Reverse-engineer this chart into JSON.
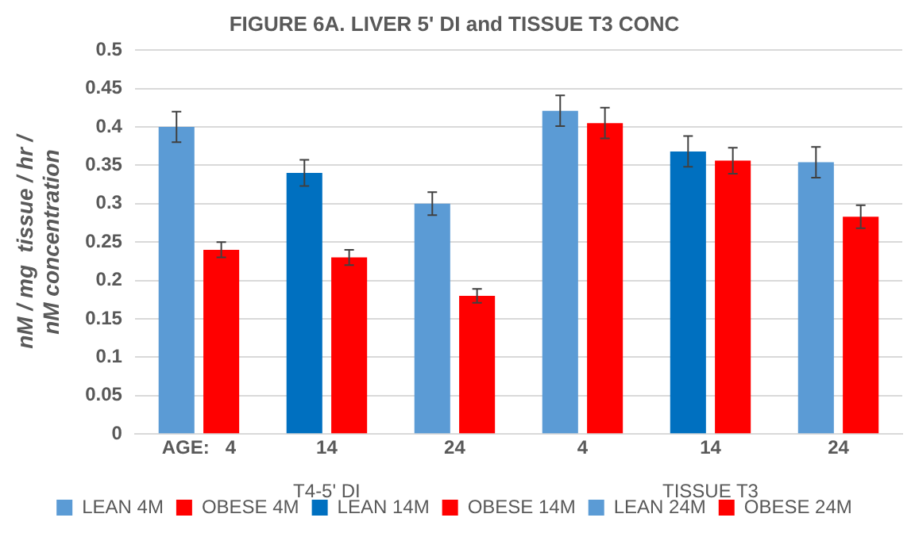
{
  "chart_data": {
    "type": "bar",
    "title": "FIGURE 6A. LIVER 5' DI and TISSUE T3 CONC",
    "ylabel": "nM / mg  tissue / hr / nM concentration",
    "categories": [
      "AGE:   4",
      "14",
      "24",
      "4",
      "14",
      "24"
    ],
    "series": [
      {
        "name": "LEAN 4M",
        "color": "#5b9bd5",
        "values": [
          0.4,
          null,
          null,
          0.421,
          null,
          null
        ],
        "errors": [
          0.02,
          null,
          null,
          0.02,
          null,
          null
        ]
      },
      {
        "name": "OBESE 4M",
        "color": "#ff0000",
        "values": [
          0.24,
          null,
          null,
          0.405,
          null,
          null
        ],
        "errors": [
          0.01,
          null,
          null,
          0.02,
          null,
          null
        ]
      },
      {
        "name": "LEAN 14M",
        "color": "#0070c0",
        "values": [
          null,
          0.34,
          null,
          null,
          0.368,
          null
        ],
        "errors": [
          null,
          0.017,
          null,
          null,
          0.02,
          null
        ]
      },
      {
        "name": "OBESE 14M",
        "color": "#ff0000",
        "values": [
          null,
          0.23,
          null,
          null,
          0.356,
          null
        ],
        "errors": [
          null,
          0.01,
          null,
          null,
          0.017,
          null
        ]
      },
      {
        "name": "LEAN 24M",
        "color": "#5b9bd5",
        "values": [
          null,
          null,
          0.3,
          null,
          null,
          0.354
        ],
        "errors": [
          null,
          null,
          0.015,
          null,
          null,
          0.02
        ]
      },
      {
        "name": "OBESE 24M",
        "color": "#ff0000",
        "values": [
          null,
          null,
          0.18,
          null,
          null,
          0.283
        ],
        "errors": [
          null,
          null,
          0.009,
          null,
          null,
          0.015
        ]
      }
    ],
    "annotations": [
      "T4-5' DI",
      "TISSUE T3"
    ],
    "ylim": [
      0,
      0.5
    ],
    "yticks": [
      0,
      0.05,
      0.1,
      0.15,
      0.2,
      0.25,
      0.3,
      0.35,
      0.4,
      0.45,
      0.5
    ],
    "grid": "y",
    "legend": "bottom"
  }
}
